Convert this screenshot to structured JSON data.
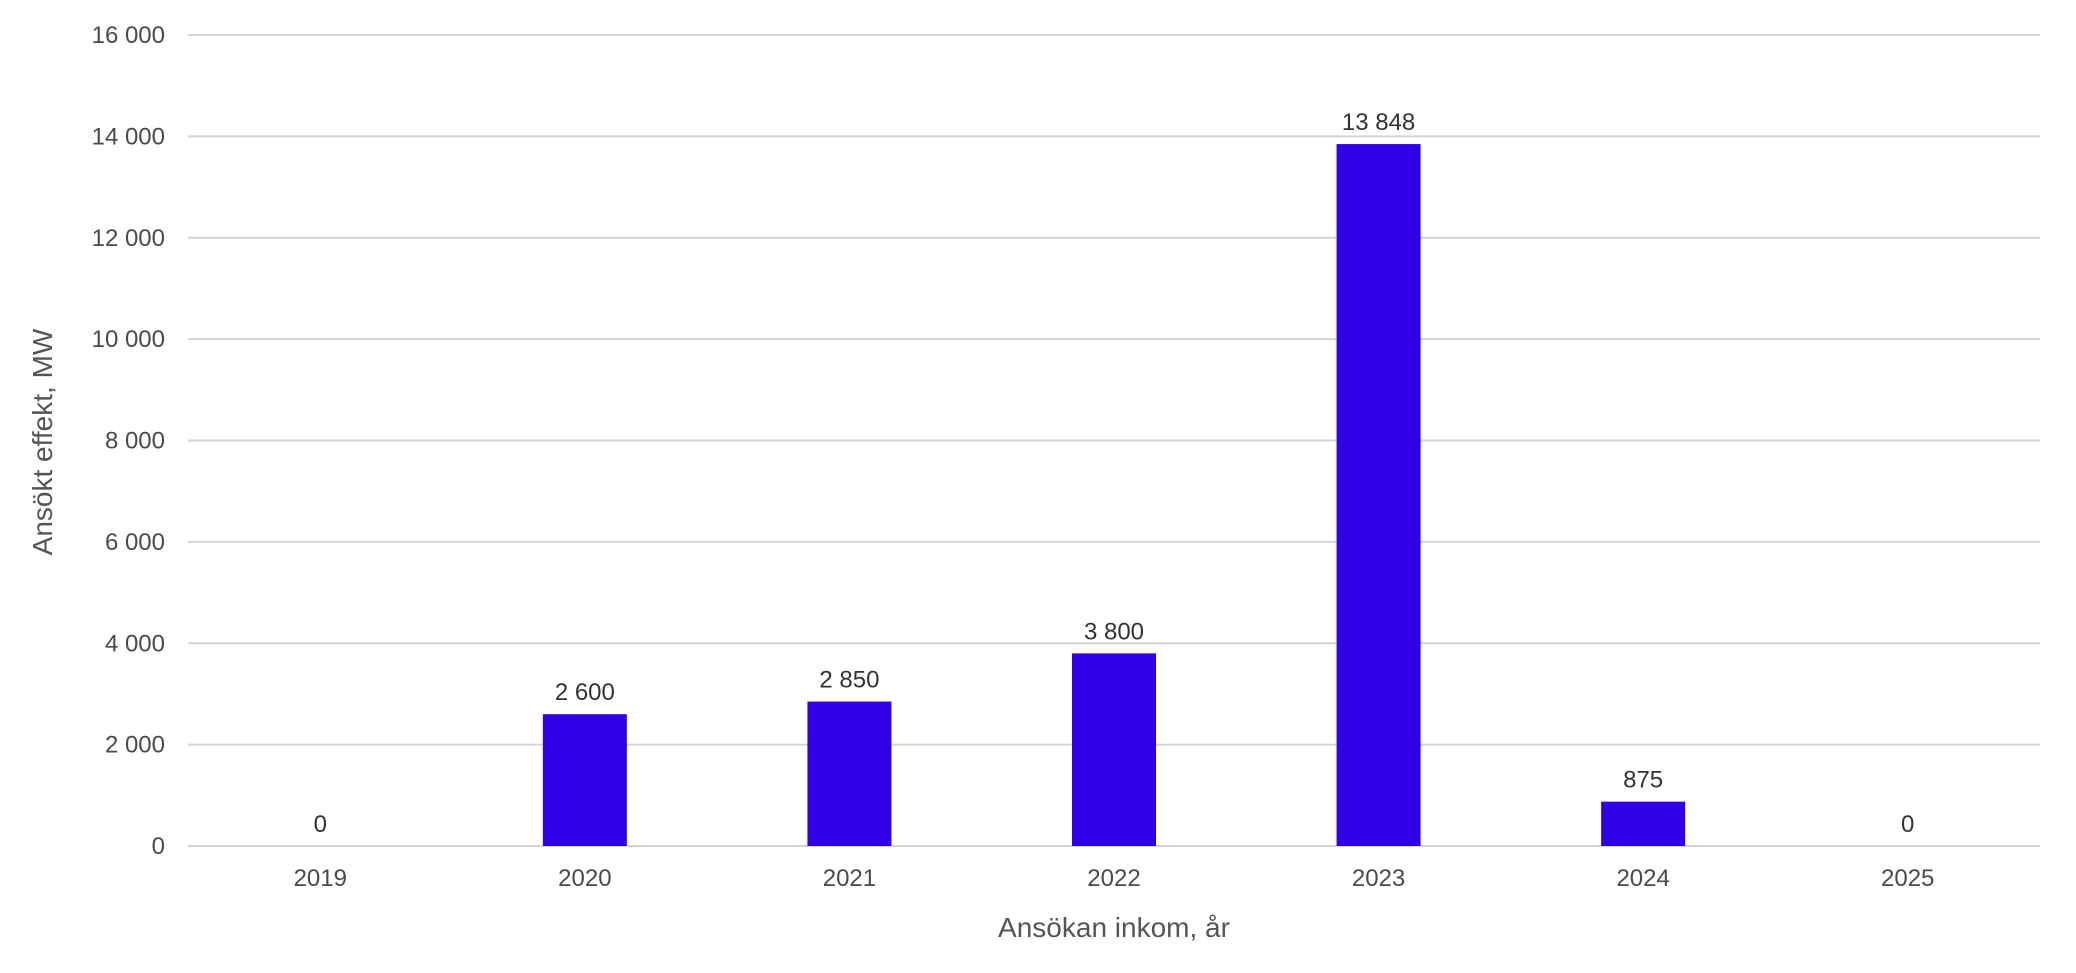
{
  "colors": {
    "bar": "#3000e6",
    "grid": "#d4d4d4",
    "text": "#4a4a4a"
  },
  "chart_data": {
    "type": "bar",
    "title": "",
    "xlabel": "Ansökan inkom, år",
    "ylabel": "Ansökt effekt, MW",
    "categories": [
      "2019",
      "2020",
      "2021",
      "2022",
      "2023",
      "2024",
      "2025"
    ],
    "values": [
      0,
      2600,
      2850,
      3800,
      13848,
      875,
      0
    ],
    "value_labels": [
      "0",
      "2 600",
      "2 850",
      "3 800",
      "13 848",
      "875",
      "0"
    ],
    "ylim": [
      0,
      16000
    ],
    "yticks": [
      0,
      2000,
      4000,
      6000,
      8000,
      10000,
      12000,
      14000,
      16000
    ],
    "ytick_labels": [
      "0",
      "2 000",
      "4 000",
      "6 000",
      "8 000",
      "10 000",
      "12 000",
      "14 000",
      "16 000"
    ],
    "grid": true,
    "legend": "none"
  }
}
